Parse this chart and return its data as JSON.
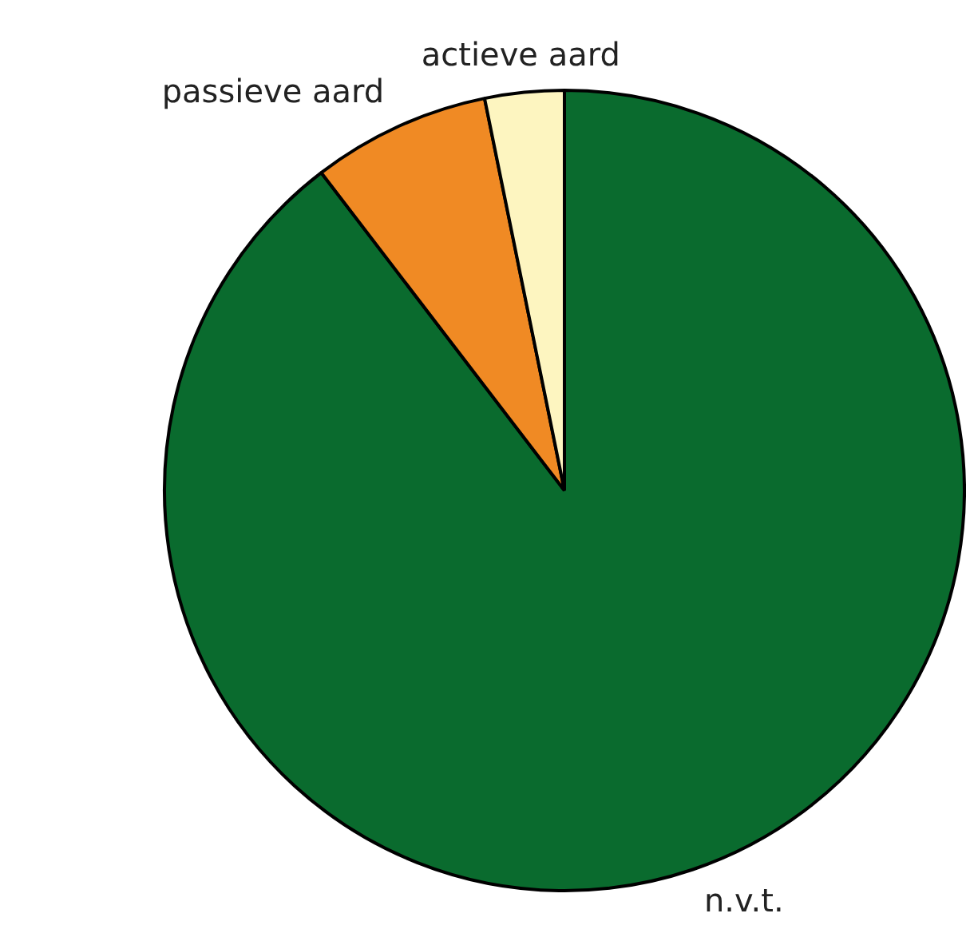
{
  "chart_data": {
    "type": "pie",
    "categories": [
      "n.v.t.",
      "passieve aard",
      "actieve aard"
    ],
    "values": [
      89.6,
      7.2,
      3.2
    ],
    "colors": [
      "#0a6b2e",
      "#f08a24",
      "#fdf5c0"
    ],
    "legend": false
  }
}
